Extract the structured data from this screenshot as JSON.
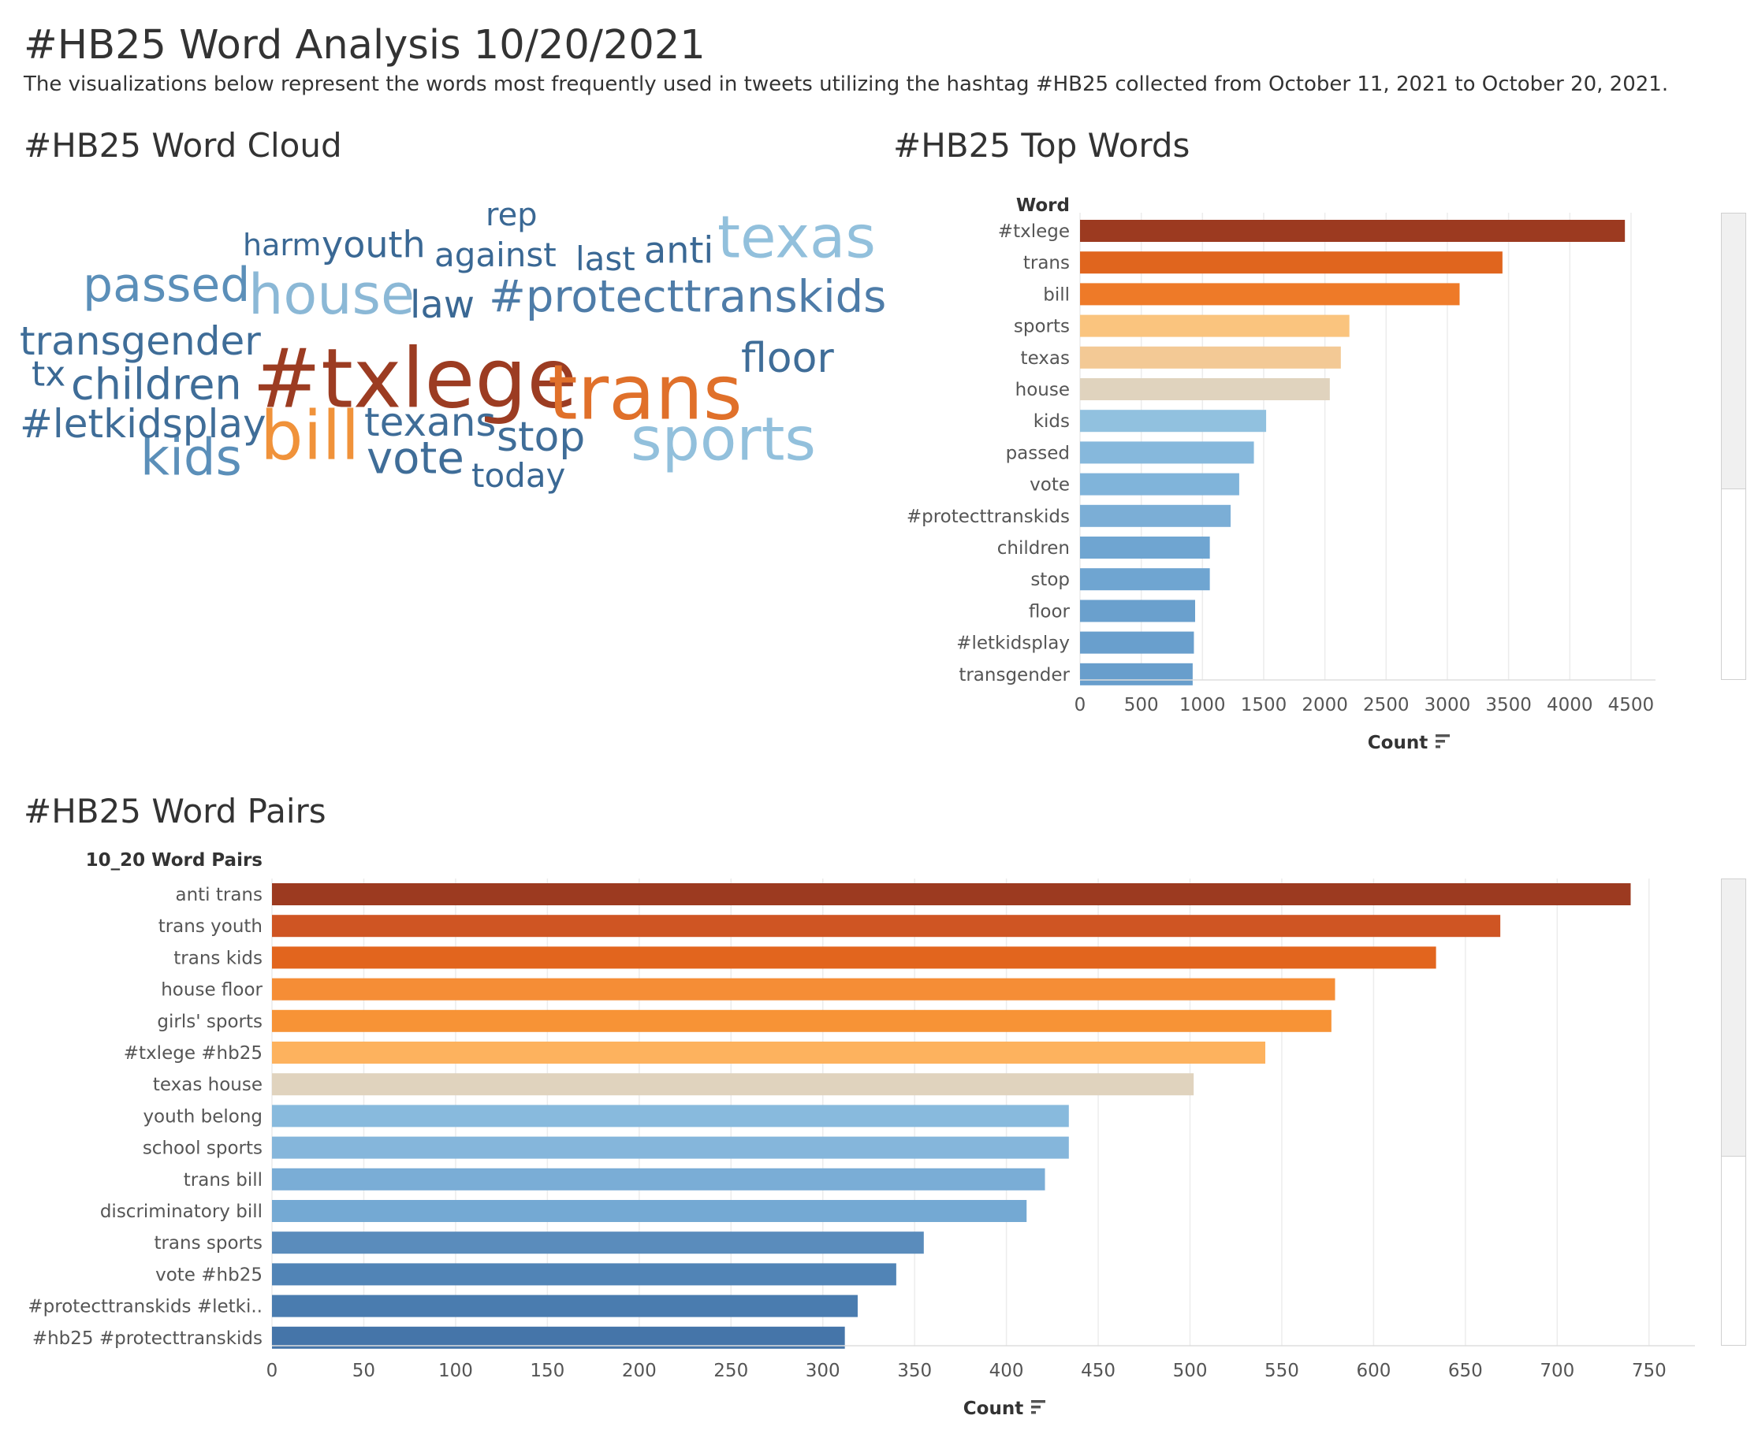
{
  "header": {
    "title": "#HB25 Word Analysis 10/20/2021",
    "subtitle": "The visualizations below represent the words most frequently used in tweets utilizing the hashtag #HB25 collected from October 11, 2021 to October 20, 2021."
  },
  "word_cloud": {
    "title": "#HB25 Word Cloud"
  },
  "top_words": {
    "title": "#HB25 Top Words"
  },
  "word_pairs": {
    "title": "#HB25 Word Pairs"
  },
  "chart_data": [
    {
      "type": "wordcloud",
      "title": "#HB25 Word Cloud",
      "words": [
        {
          "text": "#txlege",
          "color": "#9c3c22"
        },
        {
          "text": "trans",
          "color": "#e0702a"
        },
        {
          "text": "bill",
          "color": "#f0923a"
        },
        {
          "text": "sports",
          "color": "#92c0dc"
        },
        {
          "text": "texas",
          "color": "#92c0dc"
        },
        {
          "text": "house",
          "color": "#8bb8d6"
        },
        {
          "text": "passed",
          "color": "#5b8fb9"
        },
        {
          "text": "kids",
          "color": "#5b8fb9"
        },
        {
          "text": "#protecttranskids",
          "color": "#4e7ca8"
        },
        {
          "text": "transgender",
          "color": "#3f6d98"
        },
        {
          "text": "children",
          "color": "#3f6d98"
        },
        {
          "text": "#letkidsplay",
          "color": "#3f6d98"
        },
        {
          "text": "texans",
          "color": "#3f6d98"
        },
        {
          "text": "stop",
          "color": "#3f6d98"
        },
        {
          "text": "vote",
          "color": "#3f6d98"
        },
        {
          "text": "floor",
          "color": "#3f6d98"
        },
        {
          "text": "youth",
          "color": "#3a6894"
        },
        {
          "text": "anti",
          "color": "#3a6894"
        },
        {
          "text": "against",
          "color": "#3a6894"
        },
        {
          "text": "law",
          "color": "#3a6894"
        },
        {
          "text": "tx",
          "color": "#3a6894"
        },
        {
          "text": "today",
          "color": "#3a6894"
        },
        {
          "text": "last",
          "color": "#3a6894"
        },
        {
          "text": "rep",
          "color": "#3a6894"
        },
        {
          "text": "harm",
          "color": "#3a6894"
        }
      ]
    },
    {
      "type": "bar",
      "orientation": "horizontal",
      "title": "#HB25 Top Words",
      "ylabel": "Word",
      "xlabel": "Count",
      "xlim": [
        0,
        4700
      ],
      "xticks": [
        0,
        500,
        1000,
        1500,
        2000,
        2500,
        3000,
        3500,
        4000,
        4500
      ],
      "categories": [
        "#txlege",
        "trans",
        "bill",
        "sports",
        "texas",
        "house",
        "kids",
        "passed",
        "vote",
        "#protecttranskids",
        "children",
        "stop",
        "floor",
        "#letkidsplay",
        "transgender"
      ],
      "values": [
        4450,
        3450,
        3100,
        2200,
        2130,
        2040,
        1520,
        1420,
        1300,
        1230,
        1060,
        1060,
        940,
        930,
        920
      ],
      "colors": [
        "#9c3a20",
        "#e0651e",
        "#ee7a28",
        "#fac47e",
        "#f3c995",
        "#e0d3be",
        "#91c1df",
        "#86b8dc",
        "#80b4da",
        "#7baed6",
        "#6fa5d1",
        "#6fa5d1",
        "#6aa0cd",
        "#699fcd",
        "#689ecc"
      ],
      "grid": true,
      "sort_icon": "sort-descending-icon"
    },
    {
      "type": "bar",
      "orientation": "horizontal",
      "title": "#HB25 Word Pairs",
      "ylabel": "10_20 Word Pairs",
      "xlabel": "Count",
      "xlim": [
        0,
        775
      ],
      "xticks": [
        0,
        50,
        100,
        150,
        200,
        250,
        300,
        350,
        400,
        450,
        500,
        550,
        600,
        650,
        700,
        750
      ],
      "categories": [
        "anti trans",
        "trans youth",
        "trans kids",
        "house floor",
        "girls' sports",
        "#txlege #hb25",
        "texas house",
        "youth belong",
        "school sports",
        "trans bill",
        "discriminatory bill",
        "trans sports",
        "vote #hb25",
        "#protecttranskids #letki..",
        "#hb25 #protecttranskids"
      ],
      "values": [
        740,
        669,
        634,
        579,
        577,
        541,
        502,
        434,
        434,
        421,
        411,
        355,
        340,
        319,
        312
      ],
      "colors": [
        "#9c3a20",
        "#cf5523",
        "#e2651e",
        "#f58d36",
        "#f79336",
        "#fdb25e",
        "#e0d3be",
        "#88badd",
        "#85b6db",
        "#7aadd6",
        "#74a9d3",
        "#5a8cbc",
        "#5184b6",
        "#4a7caf",
        "#4575a9"
      ],
      "grid": true,
      "sort_icon": "sort-descending-icon"
    }
  ]
}
